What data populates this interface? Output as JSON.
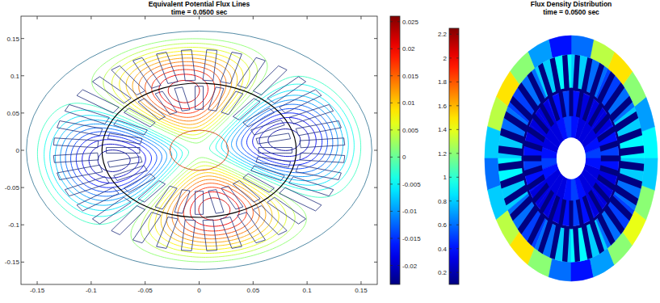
{
  "chart_data": [
    {
      "type": "contour",
      "title": "Equivalent Potential Flux Lines",
      "subtitle": "time = 0.0500 sec",
      "xlim": [
        -0.165,
        0.165
      ],
      "ylim": [
        -0.18,
        0.18
      ],
      "xticks": [
        -0.15,
        -0.1,
        -0.05,
        0,
        0.05,
        0.1,
        0.15
      ],
      "yticks": [
        -0.15,
        -0.1,
        -0.05,
        0,
        0.05,
        0.1,
        0.15
      ],
      "levels": [
        -0.022,
        -0.02,
        -0.018,
        -0.016,
        -0.014,
        -0.012,
        -0.01,
        -0.008,
        -0.006,
        -0.004,
        -0.002,
        0.002,
        0.004,
        0.006,
        0.008,
        0.01,
        0.012,
        0.014,
        0.016,
        0.018,
        0.02,
        0.022
      ],
      "colorbar": {
        "lim": [
          -0.0235,
          0.026
        ],
        "ticks": [
          -0.02,
          -0.015,
          -0.01,
          -0.005,
          0,
          0.005,
          0.01,
          0.015,
          0.02,
          0.025
        ]
      }
    },
    {
      "type": "heatmap",
      "title": "Flux Density Distribution",
      "subtitle": "time = 0.0500 sec",
      "tick_labels": false,
      "stator_yoke": [
        0.9,
        0.7,
        1.2,
        1.5,
        1.3,
        0.6,
        0.4,
        0.7,
        1.2,
        1.5,
        1.3,
        0.8,
        0.6,
        0.8,
        1.3,
        1.5,
        1.2,
        0.6,
        0.4,
        0.7,
        1.2,
        1.4,
        1.2,
        0.8
      ],
      "stator_teeth": [
        0.9,
        0.8,
        0.6,
        0.5,
        0.6,
        0.8,
        0.9,
        0.8,
        0.6,
        0.5,
        0.6,
        0.8,
        0.9,
        0.8,
        0.6,
        0.5,
        0.6,
        0.8,
        0.9,
        0.8,
        0.6,
        0.5,
        0.6,
        0.8
      ],
      "rotor": [
        0.5,
        0.4,
        0.3,
        0.3,
        0.3,
        0.4,
        0.5,
        0.4,
        0.3,
        0.3,
        0.3,
        0.4,
        0.5,
        0.4,
        0.3,
        0.3,
        0.3,
        0.4,
        0.5,
        0.4,
        0.3,
        0.3,
        0.3,
        0.4
      ],
      "colorbar": {
        "lim": [
          0.1,
          2.25
        ],
        "ticks": [
          0.2,
          0.4,
          0.6,
          0.8,
          1,
          1.2,
          1.4,
          1.6,
          1.8,
          2,
          2.2
        ]
      }
    }
  ]
}
